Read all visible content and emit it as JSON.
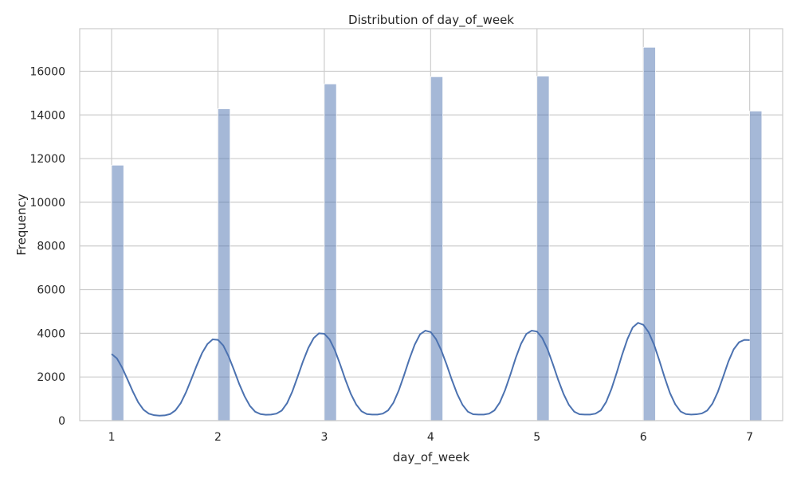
{
  "chart_data": {
    "type": "bar",
    "title": "Distribution of day_of_week",
    "xlabel": "day_of_week",
    "ylabel": "Frequency",
    "categories": [
      1,
      2,
      3,
      4,
      5,
      6,
      7
    ],
    "values": [
      11700,
      14280,
      15420,
      15750,
      15780,
      17100,
      14180
    ],
    "xlim": [
      0.7,
      7.31
    ],
    "ylim": [
      0,
      17950
    ],
    "x_ticks": [
      1,
      2,
      3,
      4,
      5,
      6,
      7
    ],
    "y_ticks": [
      0,
      2000,
      4000,
      6000,
      8000,
      10000,
      12000,
      14000,
      16000
    ],
    "grid": true,
    "kde_line": {
      "x": [
        1.0,
        1.05,
        1.1,
        1.15,
        1.2,
        1.25,
        1.3,
        1.35,
        1.4,
        1.45,
        1.5,
        1.55,
        1.6,
        1.65,
        1.7,
        1.75,
        1.8,
        1.85,
        1.9,
        1.95,
        2.0,
        2.05,
        2.1,
        2.15,
        2.2,
        2.25,
        2.3,
        2.35,
        2.4,
        2.45,
        2.5,
        2.55,
        2.6,
        2.65,
        2.7,
        2.75,
        2.8,
        2.85,
        2.9,
        2.95,
        3.0,
        3.05,
        3.1,
        3.15,
        3.2,
        3.25,
        3.3,
        3.35,
        3.4,
        3.45,
        3.5,
        3.55,
        3.6,
        3.65,
        3.7,
        3.75,
        3.8,
        3.85,
        3.9,
        3.95,
        4.0,
        4.05,
        4.1,
        4.15,
        4.2,
        4.25,
        4.3,
        4.35,
        4.4,
        4.45,
        4.5,
        4.55,
        4.6,
        4.65,
        4.7,
        4.75,
        4.8,
        4.85,
        4.9,
        4.95,
        5.0,
        5.05,
        5.1,
        5.15,
        5.2,
        5.25,
        5.3,
        5.35,
        5.4,
        5.45,
        5.5,
        5.55,
        5.6,
        5.65,
        5.7,
        5.75,
        5.8,
        5.85,
        5.9,
        5.95,
        6.0,
        6.05,
        6.1,
        6.15,
        6.2,
        6.25,
        6.3,
        6.35,
        6.4,
        6.45,
        6.5,
        6.55,
        6.6,
        6.65,
        6.7,
        6.75,
        6.8,
        6.85,
        6.9,
        6.95,
        7.0
      ],
      "y": [
        3050,
        2850,
        2420,
        1880,
        1330,
        840,
        500,
        320,
        250,
        230,
        240,
        300,
        470,
        800,
        1300,
        1900,
        2520,
        3090,
        3500,
        3720,
        3700,
        3440,
        2950,
        2330,
        1680,
        1120,
        680,
        410,
        300,
        270,
        280,
        320,
        460,
        800,
        1340,
        2020,
        2720,
        3330,
        3780,
        4000,
        3980,
        3720,
        3220,
        2560,
        1850,
        1220,
        740,
        430,
        300,
        280,
        280,
        320,
        470,
        820,
        1380,
        2080,
        2820,
        3480,
        3950,
        4120,
        4060,
        3740,
        3220,
        2570,
        1860,
        1220,
        720,
        410,
        290,
        280,
        280,
        320,
        470,
        830,
        1400,
        2110,
        2870,
        3520,
        3970,
        4120,
        4080,
        3780,
        3260,
        2580,
        1860,
        1220,
        720,
        410,
        290,
        280,
        280,
        320,
        470,
        850,
        1450,
        2200,
        3010,
        3730,
        4270,
        4480,
        4390,
        4050,
        3490,
        2760,
        1980,
        1270,
        750,
        420,
        300,
        280,
        290,
        330,
        460,
        780,
        1310,
        2000,
        2710,
        3270,
        3590,
        3700,
        3690
      ]
    }
  }
}
